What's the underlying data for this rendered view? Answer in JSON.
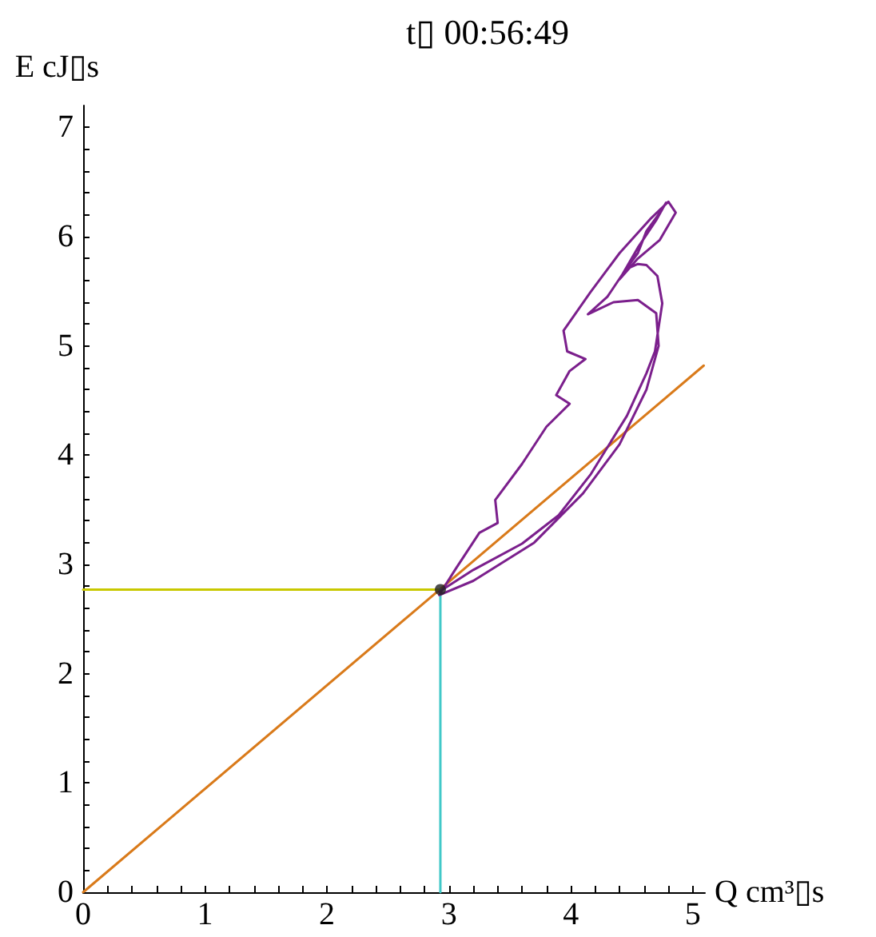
{
  "chart_data": {
    "type": "line",
    "title": "t▯ 00:56:49",
    "xlabel": "Q cm³▯s",
    "ylabel": "E cJ▯s",
    "xlim": [
      0,
      5.1
    ],
    "ylim": [
      0,
      7.2
    ],
    "xticks": [
      0,
      {
        "value": 0.2,
        "label": null
      },
      {
        "value": 0.4,
        "label": null
      },
      {
        "value": 0.6,
        "label": null
      },
      {
        "value": 0.8,
        "label": null
      },
      1,
      {
        "value": 1.2,
        "label": null
      },
      {
        "value": 1.4,
        "label": null
      },
      {
        "value": 1.6,
        "label": null
      },
      {
        "value": 1.8,
        "label": null
      },
      2,
      {
        "value": 2.2,
        "label": null
      },
      {
        "value": 2.4,
        "label": null
      },
      {
        "value": 2.6,
        "label": null
      },
      {
        "value": 2.8,
        "label": null
      },
      3,
      {
        "value": 3.2,
        "label": null
      },
      {
        "value": 3.4,
        "label": null
      },
      {
        "value": 3.6,
        "label": null
      },
      {
        "value": 3.8,
        "label": null
      },
      4,
      {
        "value": 4.2,
        "label": null
      },
      {
        "value": 4.4,
        "label": null
      },
      {
        "value": 4.6,
        "label": null
      },
      {
        "value": 4.8,
        "label": null
      },
      5
    ],
    "yticks": [
      0,
      {
        "value": 0.2,
        "label": null
      },
      {
        "value": 0.4,
        "label": null
      },
      {
        "value": 0.6,
        "label": null
      },
      {
        "value": 0.8,
        "label": null
      },
      1,
      {
        "value": 1.2,
        "label": null
      },
      {
        "value": 1.4,
        "label": null
      },
      {
        "value": 1.6,
        "label": null
      },
      {
        "value": 1.8,
        "label": null
      },
      2,
      {
        "value": 2.2,
        "label": null
      },
      {
        "value": 2.4,
        "label": null
      },
      {
        "value": 2.6,
        "label": null
      },
      {
        "value": 2.8,
        "label": null
      },
      3,
      {
        "value": 3.2,
        "label": null
      },
      {
        "value": 3.4,
        "label": null
      },
      {
        "value": 3.6,
        "label": null
      },
      {
        "value": 3.8,
        "label": null
      },
      4,
      {
        "value": 4.2,
        "label": null
      },
      {
        "value": 4.4,
        "label": null
      },
      {
        "value": 4.6,
        "label": null
      },
      {
        "value": 4.8,
        "label": null
      },
      5,
      {
        "value": 5.2,
        "label": null
      },
      {
        "value": 5.4,
        "label": null
      },
      {
        "value": 5.6,
        "label": null
      },
      {
        "value": 5.8,
        "label": null
      },
      6,
      {
        "value": 6.2,
        "label": null
      },
      {
        "value": 6.4,
        "label": null
      },
      {
        "value": 6.6,
        "label": null
      },
      {
        "value": 6.8,
        "label": null
      },
      7
    ],
    "grid": false,
    "marker": "none",
    "line_style": "solid",
    "series": [
      {
        "color": "#d97a1a",
        "x": [
          0,
          5.09
        ],
        "values": [
          0,
          4.82
        ]
      },
      {
        "color": "#c8c800",
        "x": [
          0,
          2.93
        ],
        "values": [
          2.77,
          2.77
        ]
      },
      {
        "color": "#40c8c8",
        "x": [
          2.93,
          2.93
        ],
        "values": [
          0,
          2.77
        ]
      },
      {
        "color": "#7b1f8c",
        "x": [
          2.92,
          3.2,
          3.6,
          3.9,
          4.16,
          4.46,
          4.62,
          4.69,
          4.75,
          4.71,
          4.62,
          4.55,
          4.45,
          4.4,
          4.55,
          4.7,
          4.78,
          4.75,
          4.62,
          4.55,
          4.45,
          4.3,
          4.14,
          4.35,
          4.55,
          4.7,
          4.72,
          4.62,
          4.4,
          4.1,
          3.7,
          3.2,
          2.92,
          3.05,
          3.25,
          3.4,
          3.38,
          3.6,
          3.8,
          3.99,
          3.88,
          3.99,
          4.12,
          3.97,
          3.94,
          4.16,
          4.4,
          4.65,
          4.8,
          4.86,
          4.73,
          4.55,
          4.4
        ],
        "values": [
          2.75,
          2.95,
          3.19,
          3.45,
          3.82,
          4.36,
          4.75,
          4.95,
          5.39,
          5.64,
          5.74,
          5.75,
          5.7,
          5.61,
          5.9,
          6.15,
          6.31,
          6.25,
          6.05,
          5.85,
          5.7,
          5.45,
          5.29,
          5.4,
          5.42,
          5.3,
          5.0,
          4.6,
          4.1,
          3.65,
          3.2,
          2.85,
          2.72,
          2.95,
          3.29,
          3.38,
          3.59,
          3.92,
          4.26,
          4.47,
          4.55,
          4.77,
          4.88,
          4.95,
          5.14,
          5.49,
          5.85,
          6.16,
          6.32,
          6.22,
          5.97,
          5.8,
          5.61
        ]
      },
      {
        "type": "scatter",
        "marker": "circle",
        "color": "#222222",
        "x": [
          2.93
        ],
        "values": [
          2.77
        ]
      }
    ]
  }
}
